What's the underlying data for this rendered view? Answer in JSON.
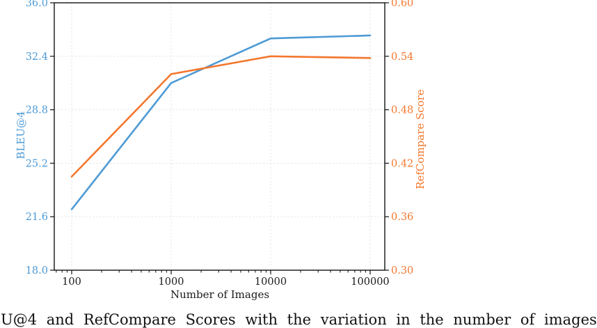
{
  "figure": {
    "caption_visible": "U@4 and RefCompare Scores with the variation in the number of images"
  },
  "chart_data": {
    "type": "line",
    "x_scale": "log",
    "x": [
      100,
      1000,
      10000,
      100000
    ],
    "series": [
      {
        "name": "BLEU@4",
        "axis": "left",
        "color": "#4D9AD5",
        "values": [
          22.1,
          30.6,
          33.6,
          33.8
        ]
      },
      {
        "name": "RefCompare Score",
        "axis": "right",
        "color": "#F4772D",
        "values": [
          0.405,
          0.52,
          0.54,
          0.538
        ]
      }
    ],
    "x_axis": {
      "label": "Number of Images",
      "ticks": [
        100,
        1000,
        10000,
        100000
      ],
      "tick_labels": [
        "100",
        "1000",
        "10000",
        "100000"
      ],
      "range_log10": [
        1.825,
        5.147
      ]
    },
    "left_axis": {
      "label": "BLEU@4",
      "color": "#4D9AD5",
      "ticks": [
        18.0,
        21.6,
        25.2,
        28.8,
        32.4,
        36.0
      ],
      "tick_labels": [
        "18.0",
        "21.6",
        "25.2",
        "28.8",
        "32.4",
        "36.0"
      ],
      "range": [
        18.0,
        36.0
      ]
    },
    "right_axis": {
      "label": "RefCompare Score",
      "color": "#F4772D",
      "ticks": [
        0.3,
        0.36,
        0.42,
        0.48,
        0.54,
        0.6
      ],
      "tick_labels": [
        "0.30",
        "0.36",
        "0.42",
        "0.48",
        "0.54",
        "0.60"
      ],
      "range": [
        0.3,
        0.6
      ]
    },
    "grid": true,
    "legend": "none",
    "colors": {
      "grid": "#E3E3E3",
      "axis": "#111111",
      "x_tick_text": "#1a1a1a"
    }
  }
}
